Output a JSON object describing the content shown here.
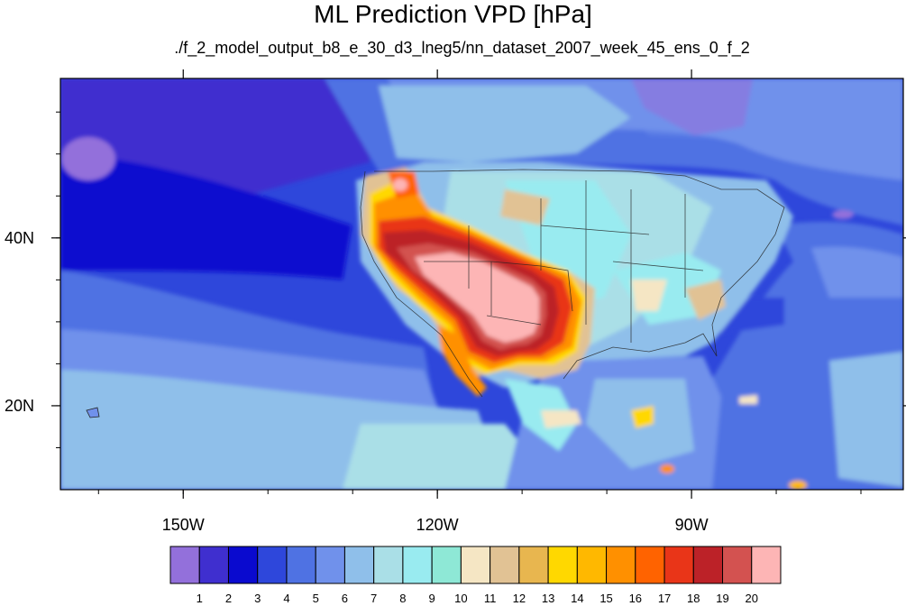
{
  "title": "ML Prediction VPD [hPa]",
  "subtitle": "./f_2_model_output_b8_e_30_d3_lneg5/nn_dataset_2007_week_45_ens_0_f_2",
  "map": {
    "region": "North America / Eastern Pacific",
    "lon_range": [
      -164.5,
      -65
    ],
    "lat_range": [
      10,
      59
    ],
    "x_ticks": [
      {
        "value": -150,
        "label": "150W"
      },
      {
        "value": -120,
        "label": "120W"
      },
      {
        "value": -90,
        "label": "90W"
      }
    ],
    "y_ticks": [
      {
        "value": 40,
        "label": "40N"
      },
      {
        "value": 20,
        "label": "20N"
      }
    ]
  },
  "colorbar": {
    "labels": [
      "1",
      "2",
      "3",
      "4",
      "5",
      "6",
      "7",
      "8",
      "9",
      "10",
      "11",
      "12",
      "13",
      "14",
      "15",
      "16",
      "17",
      "18",
      "19",
      "20"
    ],
    "colors": [
      "#9370DB",
      "#3F2FCF",
      "#0A0ACF",
      "#2E47DB",
      "#4F72E3",
      "#7091EB",
      "#8FBFEA",
      "#AADFE7",
      "#99EBF0",
      "#8EE8D6",
      "#F5E6C4",
      "#E1C294",
      "#E8B64F",
      "#FFD800",
      "#FFB800",
      "#FF9000",
      "#FF6300",
      "#E93518",
      "#BC2228",
      "#D35250",
      "#FDB5B5"
    ]
  }
}
